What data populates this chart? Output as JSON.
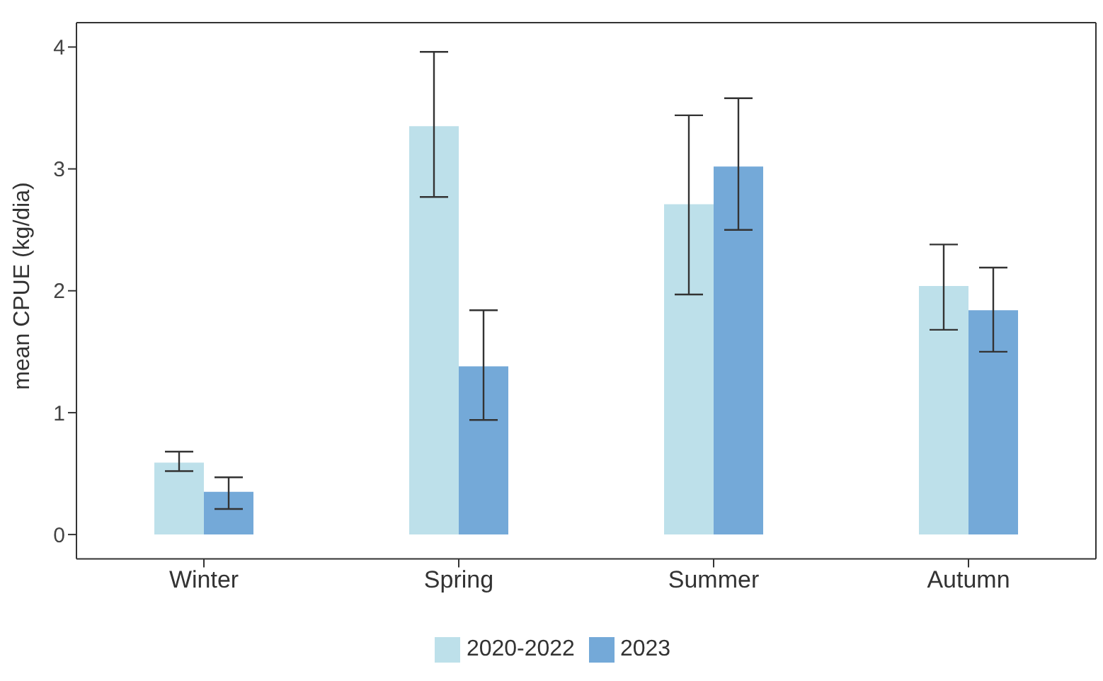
{
  "chart_data": {
    "type": "bar",
    "ylabel": "mean CPUE (kg/dia)",
    "categories": [
      "Winter",
      "Spring",
      "Summer",
      "Autumn"
    ],
    "series": [
      {
        "name": "2020-2022",
        "color": "#bde0ea",
        "values": [
          0.59,
          3.35,
          2.71,
          2.04
        ],
        "errors": [
          [
            0.52,
            0.68
          ],
          [
            2.77,
            3.96
          ],
          [
            1.97,
            3.44
          ],
          [
            1.68,
            2.38
          ]
        ]
      },
      {
        "name": "2023",
        "color": "#74a9d8",
        "values": [
          0.35,
          1.38,
          3.02,
          1.84
        ],
        "errors": [
          [
            0.21,
            0.47
          ],
          [
            0.94,
            1.84
          ],
          [
            2.5,
            3.58
          ],
          [
            1.5,
            2.19
          ]
        ]
      }
    ],
    "ylim": [
      -0.2,
      4.2
    ],
    "yticks": [
      0,
      1,
      2,
      3,
      4
    ],
    "grid": false,
    "legend": "bottom"
  }
}
